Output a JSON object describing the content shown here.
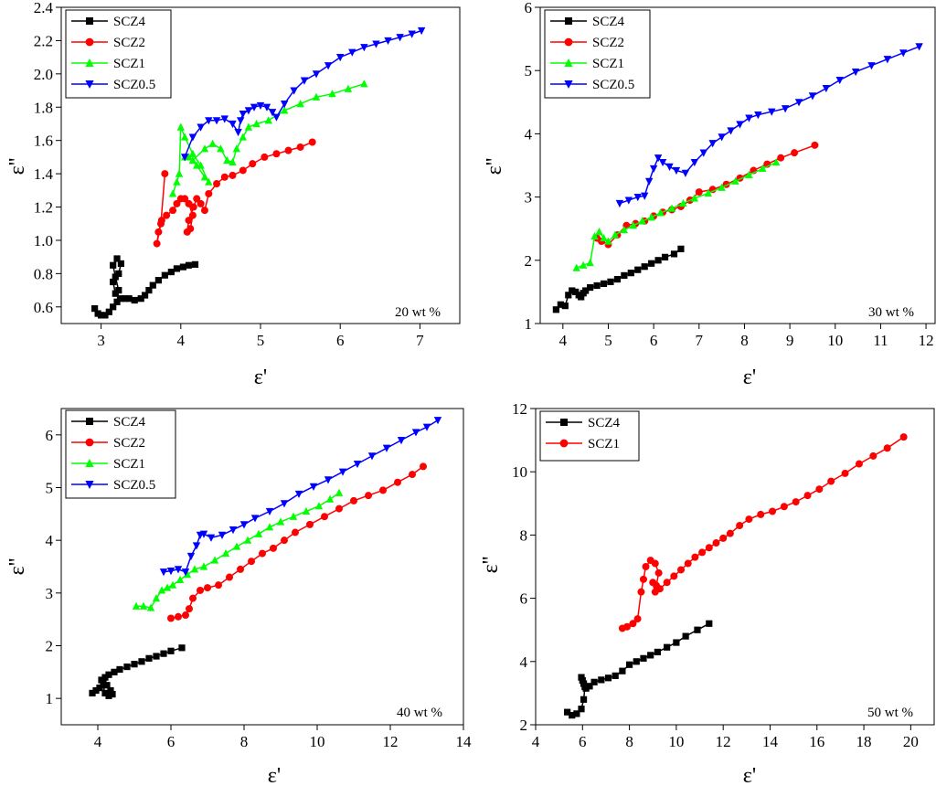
{
  "chart_data": [
    {
      "type": "line",
      "panel": "top-left",
      "annotation": "20 wt %",
      "xlabel": "ε'",
      "ylabel": "ε''",
      "xlim": [
        2.5,
        7.5
      ],
      "ylim": [
        0.5,
        2.4
      ],
      "xticks": [
        3,
        4,
        5,
        6,
        7
      ],
      "xtick_labels": [
        "3",
        "4",
        "5",
        "6",
        "7"
      ],
      "yticks": [
        0.6,
        0.8,
        1.0,
        1.2,
        1.4,
        1.6,
        1.8,
        2.0,
        2.2,
        2.4
      ],
      "ytick_labels": [
        "0.6",
        "0.8",
        "1.0",
        "1.2",
        "1.4",
        "1.6",
        "1.8",
        "2.0",
        "2.2",
        "2.4"
      ],
      "legend": "top-left",
      "series": [
        {
          "name": "SCZ4",
          "color": "#000000",
          "marker": "square",
          "x": [
            2.92,
            2.96,
            3.0,
            3.05,
            3.1,
            3.15,
            3.2,
            3.22,
            3.18,
            3.15,
            3.2,
            3.25,
            3.22,
            3.15,
            3.18,
            3.25,
            3.3,
            3.35,
            3.42,
            3.5,
            3.55,
            3.6,
            3.65,
            3.72,
            3.8,
            3.88,
            3.95,
            4.03,
            4.1,
            4.18
          ],
          "y": [
            0.59,
            0.56,
            0.55,
            0.55,
            0.57,
            0.6,
            0.63,
            0.7,
            0.78,
            0.85,
            0.89,
            0.86,
            0.8,
            0.75,
            0.68,
            0.65,
            0.65,
            0.65,
            0.64,
            0.65,
            0.67,
            0.7,
            0.73,
            0.76,
            0.79,
            0.81,
            0.83,
            0.84,
            0.85,
            0.855
          ]
        },
        {
          "name": "SCZ2",
          "color": "#ff0000",
          "marker": "circle",
          "x": [
            3.8,
            3.75,
            3.7,
            3.72,
            3.76,
            3.82,
            3.9,
            3.95,
            4.0,
            4.05,
            4.1,
            4.15,
            4.12,
            4.08,
            4.1,
            4.16,
            4.2,
            4.25,
            4.3,
            4.35,
            4.45,
            4.55,
            4.65,
            4.78,
            4.9,
            5.05,
            5.2,
            5.35,
            5.5,
            5.65
          ],
          "y": [
            1.4,
            1.1,
            0.98,
            1.05,
            1.12,
            1.15,
            1.18,
            1.22,
            1.25,
            1.25,
            1.22,
            1.15,
            1.07,
            1.05,
            1.12,
            1.2,
            1.25,
            1.22,
            1.18,
            1.28,
            1.34,
            1.38,
            1.39,
            1.42,
            1.46,
            1.5,
            1.52,
            1.54,
            1.56,
            1.59
          ]
        },
        {
          "name": "SCZ1",
          "color": "#00ff00",
          "marker": "triangle-up",
          "x": [
            3.9,
            3.95,
            3.98,
            4.0,
            4.05,
            4.15,
            4.25,
            4.35,
            4.3,
            4.2,
            4.1,
            4.05,
            4.15,
            4.3,
            4.4,
            4.5,
            4.58,
            4.65,
            4.7,
            4.78,
            4.85,
            4.95,
            5.1,
            5.3,
            5.5,
            5.7,
            5.9,
            6.1,
            6.3
          ],
          "y": [
            1.28,
            1.35,
            1.4,
            1.68,
            1.62,
            1.52,
            1.45,
            1.35,
            1.38,
            1.45,
            1.5,
            1.5,
            1.48,
            1.55,
            1.58,
            1.55,
            1.48,
            1.47,
            1.55,
            1.62,
            1.68,
            1.7,
            1.72,
            1.78,
            1.82,
            1.86,
            1.88,
            1.91,
            1.94
          ]
        },
        {
          "name": "SCZ0.5",
          "color": "#0000ff",
          "marker": "triangle-down",
          "x": [
            4.05,
            4.15,
            4.25,
            4.35,
            4.45,
            4.55,
            4.65,
            4.72,
            4.75,
            4.78,
            4.85,
            4.92,
            5.0,
            5.08,
            5.15,
            5.2,
            5.3,
            5.42,
            5.55,
            5.7,
            5.85,
            6.0,
            6.15,
            6.3,
            6.45,
            6.6,
            6.75,
            6.9,
            7.02
          ],
          "y": [
            1.5,
            1.62,
            1.68,
            1.72,
            1.72,
            1.73,
            1.7,
            1.65,
            1.72,
            1.76,
            1.78,
            1.8,
            1.81,
            1.8,
            1.77,
            1.74,
            1.82,
            1.9,
            1.96,
            2.0,
            2.05,
            2.1,
            2.13,
            2.16,
            2.18,
            2.2,
            2.22,
            2.24,
            2.26
          ]
        }
      ]
    },
    {
      "type": "line",
      "panel": "top-right",
      "annotation": "30 wt %",
      "xlabel": "ε'",
      "ylabel": "ε''",
      "xlim": [
        3.5,
        12.2
      ],
      "ylim": [
        1,
        6
      ],
      "xticks": [
        4,
        5,
        6,
        7,
        8,
        9,
        10,
        11,
        12
      ],
      "xtick_labels": [
        "4",
        "5",
        "6",
        "7",
        "8",
        "9",
        "10",
        "11",
        "12"
      ],
      "yticks": [
        1,
        2,
        3,
        4,
        5,
        6
      ],
      "ytick_labels": [
        "1",
        "2",
        "3",
        "4",
        "5",
        "6"
      ],
      "legend": "top-left",
      "series": [
        {
          "name": "SCZ4",
          "color": "#000000",
          "marker": "square",
          "x": [
            3.85,
            3.95,
            4.05,
            4.12,
            4.2,
            4.28,
            4.35,
            4.4,
            4.45,
            4.5,
            4.6,
            4.75,
            4.9,
            5.05,
            5.2,
            5.35,
            5.5,
            5.65,
            5.8,
            5.95,
            6.1,
            6.25,
            6.45,
            6.6
          ],
          "y": [
            1.22,
            1.3,
            1.28,
            1.45,
            1.52,
            1.5,
            1.45,
            1.42,
            1.48,
            1.52,
            1.57,
            1.6,
            1.63,
            1.66,
            1.7,
            1.76,
            1.8,
            1.85,
            1.9,
            1.95,
            2.0,
            2.05,
            2.1,
            2.18
          ]
        },
        {
          "name": "SCZ2",
          "color": "#ff0000",
          "marker": "circle",
          "x": [
            4.75,
            4.85,
            5.0,
            5.2,
            5.4,
            5.6,
            5.8,
            6.0,
            6.2,
            6.4,
            6.6,
            6.8,
            7.0,
            7.3,
            7.6,
            7.9,
            8.2,
            8.5,
            8.8,
            9.1,
            9.55
          ],
          "y": [
            2.35,
            2.3,
            2.25,
            2.4,
            2.55,
            2.58,
            2.62,
            2.7,
            2.76,
            2.8,
            2.85,
            2.95,
            3.08,
            3.12,
            3.2,
            3.3,
            3.42,
            3.52,
            3.62,
            3.7,
            3.82
          ]
        },
        {
          "name": "SCZ1",
          "color": "#00ff00",
          "marker": "triangle-up",
          "x": [
            4.3,
            4.45,
            4.6,
            4.7,
            4.8,
            4.9,
            5.0,
            5.15,
            5.35,
            5.55,
            5.75,
            5.95,
            6.15,
            6.4,
            6.65,
            6.9,
            7.2,
            7.5,
            7.8,
            8.1,
            8.4,
            8.7
          ],
          "y": [
            1.88,
            1.92,
            1.96,
            2.38,
            2.45,
            2.35,
            2.3,
            2.4,
            2.48,
            2.55,
            2.62,
            2.68,
            2.75,
            2.82,
            2.9,
            2.98,
            3.06,
            3.15,
            3.25,
            3.35,
            3.45,
            3.55
          ]
        },
        {
          "name": "SCZ0.5",
          "color": "#0000ff",
          "marker": "triangle-down",
          "x": [
            5.25,
            5.45,
            5.65,
            5.8,
            5.9,
            6.0,
            6.1,
            6.2,
            6.35,
            6.5,
            6.7,
            6.9,
            7.1,
            7.3,
            7.5,
            7.7,
            7.9,
            8.1,
            8.3,
            8.6,
            8.9,
            9.2,
            9.5,
            9.8,
            10.1,
            10.45,
            10.8,
            11.15,
            11.5,
            11.85
          ],
          "y": [
            2.9,
            2.95,
            3.0,
            3.02,
            3.25,
            3.45,
            3.62,
            3.55,
            3.48,
            3.42,
            3.38,
            3.55,
            3.7,
            3.85,
            3.95,
            4.05,
            4.15,
            4.25,
            4.3,
            4.35,
            4.4,
            4.5,
            4.6,
            4.72,
            4.85,
            4.98,
            5.08,
            5.18,
            5.28,
            5.38
          ]
        }
      ]
    },
    {
      "type": "line",
      "panel": "bottom-left",
      "annotation": "40 wt %",
      "xlabel": "ε'",
      "ylabel": "ε''",
      "xlim": [
        3,
        14
      ],
      "ylim": [
        0.5,
        6.5
      ],
      "xticks": [
        4,
        6,
        8,
        10,
        12,
        14
      ],
      "xtick_labels": [
        "4",
        "6",
        "8",
        "10",
        "12",
        "14"
      ],
      "yticks": [
        1,
        2,
        3,
        4,
        5,
        6
      ],
      "ytick_labels": [
        "1",
        "2",
        "3",
        "4",
        "5",
        "6"
      ],
      "legend": "top-left",
      "series": [
        {
          "name": "SCZ4",
          "color": "#000000",
          "marker": "square",
          "x": [
            3.85,
            3.95,
            4.05,
            4.15,
            4.25,
            4.35,
            4.4,
            4.3,
            4.2,
            4.1,
            4.2,
            4.3,
            4.45,
            4.6,
            4.8,
            5.0,
            5.2,
            5.4,
            5.6,
            5.8,
            6.0,
            6.3
          ],
          "y": [
            1.1,
            1.15,
            1.2,
            1.3,
            1.25,
            1.15,
            1.08,
            1.05,
            1.1,
            1.35,
            1.4,
            1.45,
            1.5,
            1.55,
            1.6,
            1.65,
            1.7,
            1.76,
            1.8,
            1.85,
            1.9,
            1.96
          ]
        },
        {
          "name": "SCZ2",
          "color": "#ff0000",
          "marker": "circle",
          "x": [
            6.0,
            6.2,
            6.4,
            6.5,
            6.6,
            6.8,
            7.0,
            7.3,
            7.6,
            7.9,
            8.2,
            8.5,
            8.8,
            9.1,
            9.4,
            9.8,
            10.2,
            10.6,
            11.0,
            11.4,
            11.8,
            12.2,
            12.6,
            12.9
          ],
          "y": [
            2.52,
            2.55,
            2.58,
            2.7,
            2.9,
            3.05,
            3.1,
            3.15,
            3.3,
            3.45,
            3.6,
            3.75,
            3.85,
            4.0,
            4.15,
            4.3,
            4.45,
            4.6,
            4.75,
            4.85,
            4.95,
            5.1,
            5.25,
            5.4
          ]
        },
        {
          "name": "SCZ1",
          "color": "#00ff00",
          "marker": "triangle-up",
          "x": [
            5.05,
            5.25,
            5.45,
            5.6,
            5.75,
            5.9,
            6.05,
            6.25,
            6.45,
            6.65,
            6.9,
            7.2,
            7.5,
            7.8,
            8.1,
            8.4,
            8.7,
            9.0,
            9.35,
            9.7,
            10.05,
            10.35,
            10.6
          ],
          "y": [
            2.75,
            2.75,
            2.72,
            2.9,
            3.05,
            3.1,
            3.15,
            3.25,
            3.35,
            3.45,
            3.5,
            3.62,
            3.75,
            3.88,
            4.0,
            4.12,
            4.25,
            4.35,
            4.45,
            4.55,
            4.65,
            4.78,
            4.9
          ]
        },
        {
          "name": "SCZ0.5",
          "color": "#0000ff",
          "marker": "triangle-down",
          "x": [
            5.8,
            6.0,
            6.2,
            6.4,
            6.55,
            6.7,
            6.8,
            6.9,
            7.1,
            7.4,
            7.7,
            8.0,
            8.3,
            8.7,
            9.1,
            9.5,
            9.9,
            10.3,
            10.7,
            11.1,
            11.5,
            11.9,
            12.3,
            12.7,
            13.0,
            13.3
          ],
          "y": [
            3.4,
            3.42,
            3.45,
            3.4,
            3.7,
            3.9,
            4.1,
            4.12,
            4.05,
            4.1,
            4.2,
            4.3,
            4.42,
            4.55,
            4.7,
            4.88,
            5.02,
            5.15,
            5.3,
            5.45,
            5.6,
            5.75,
            5.9,
            6.05,
            6.15,
            6.28
          ]
        }
      ]
    },
    {
      "type": "line",
      "panel": "bottom-right",
      "annotation": "50 wt %",
      "xlabel": "ε'",
      "ylabel": "ε''",
      "xlim": [
        4,
        21
      ],
      "ylim": [
        2,
        12
      ],
      "xticks": [
        4,
        6,
        8,
        10,
        12,
        14,
        16,
        18,
        20
      ],
      "xtick_labels": [
        "4",
        "6",
        "8",
        "10",
        "12",
        "14",
        "16",
        "18",
        "20"
      ],
      "yticks": [
        2,
        4,
        6,
        8,
        10,
        12
      ],
      "ytick_labels": [
        "2",
        "4",
        "6",
        "8",
        "10",
        "12"
      ],
      "legend": "top-left",
      "series": [
        {
          "name": "SCZ4",
          "color": "#000000",
          "marker": "square",
          "x": [
            5.35,
            5.55,
            5.75,
            5.95,
            6.05,
            6.1,
            6.0,
            5.95,
            6.05,
            6.15,
            6.3,
            6.5,
            6.8,
            7.1,
            7.4,
            7.7,
            8.0,
            8.3,
            8.6,
            8.9,
            9.2,
            9.6,
            10.0,
            10.4,
            10.9,
            11.4
          ],
          "y": [
            2.4,
            2.3,
            2.35,
            2.5,
            2.8,
            3.2,
            3.4,
            3.5,
            3.3,
            3.15,
            3.22,
            3.35,
            3.42,
            3.48,
            3.55,
            3.7,
            3.9,
            4.0,
            4.1,
            4.2,
            4.3,
            4.45,
            4.6,
            4.8,
            5.0,
            5.2
          ]
        },
        {
          "name": "SCZ1",
          "color": "#ff0000",
          "marker": "circle",
          "x": [
            7.7,
            7.9,
            8.15,
            8.35,
            8.5,
            8.6,
            8.7,
            8.9,
            9.1,
            9.25,
            9.15,
            9.0,
            9.1,
            9.3,
            9.6,
            9.9,
            10.2,
            10.5,
            10.8,
            11.1,
            11.4,
            11.7,
            12.0,
            12.3,
            12.7,
            13.1,
            13.6,
            14.1,
            14.6,
            15.1,
            15.6,
            16.1,
            16.6,
            17.2,
            17.8,
            18.4,
            19.0,
            19.7
          ],
          "y": [
            5.05,
            5.1,
            5.2,
            5.35,
            6.2,
            6.6,
            7.0,
            7.2,
            7.1,
            6.8,
            6.4,
            6.5,
            6.2,
            6.3,
            6.5,
            6.7,
            6.9,
            7.1,
            7.3,
            7.45,
            7.6,
            7.75,
            7.9,
            8.05,
            8.3,
            8.5,
            8.65,
            8.75,
            8.9,
            9.05,
            9.25,
            9.45,
            9.7,
            9.95,
            10.25,
            10.5,
            10.75,
            11.1
          ]
        }
      ]
    }
  ]
}
